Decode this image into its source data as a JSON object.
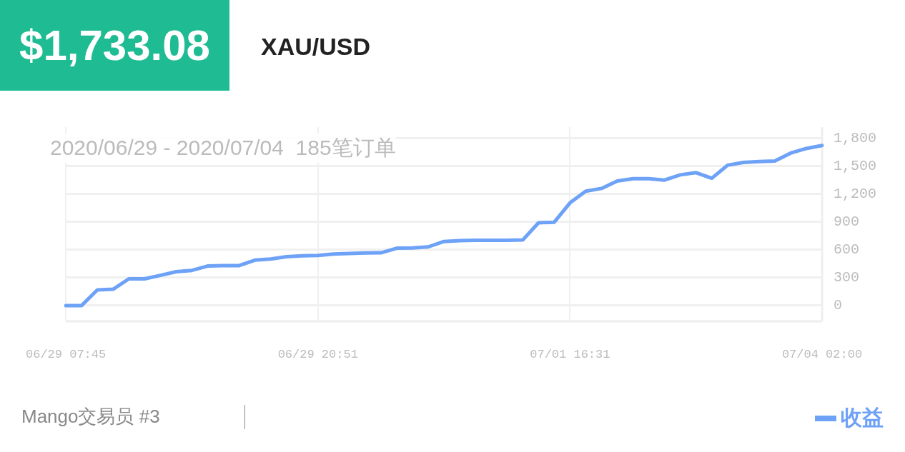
{
  "chart_data": {
    "type": "line",
    "title": "$1,733.08",
    "subtitle": "XAU/USD",
    "annotations": [
      "2020/06/29 - 2020/07/04  185笔订单",
      "Mango交易员 #3"
    ],
    "categories": [
      "06/29 07:45",
      null,
      null,
      null,
      null,
      null,
      null,
      null,
      null,
      null,
      null,
      null,
      null,
      null,
      null,
      null,
      "06/29 20:51",
      null,
      null,
      null,
      null,
      null,
      null,
      null,
      null,
      null,
      null,
      null,
      null,
      null,
      null,
      null,
      "07/01 16:31",
      null,
      null,
      null,
      null,
      null,
      null,
      null,
      null,
      null,
      null,
      null,
      null,
      null,
      null,
      null,
      "07/04 02:00"
    ],
    "series": [
      {
        "name": "收益",
        "color": "#6ea2f7",
        "values": [
          0,
          0,
          168,
          175,
          287,
          287,
          325,
          364,
          378,
          425,
          430,
          430,
          488,
          500,
          525,
          535,
          538,
          555,
          560,
          565,
          567,
          617,
          620,
          631,
          689,
          698,
          703,
          703,
          703,
          705,
          890,
          897,
          1105,
          1230,
          1260,
          1340,
          1365,
          1365,
          1350,
          1406,
          1430,
          1370,
          1510,
          1540,
          1550,
          1555,
          1640,
          1690,
          1722
        ]
      }
    ],
    "ylim": [
      -170,
      1920
    ],
    "yticks": [
      0,
      300,
      600,
      900,
      {
        "value": 1200,
        "label": "1,200"
      },
      {
        "value": 1500,
        "label": "1,500"
      },
      {
        "value": 1800,
        "label": "1,800"
      }
    ],
    "grid": true,
    "legend": "bottom right"
  }
}
